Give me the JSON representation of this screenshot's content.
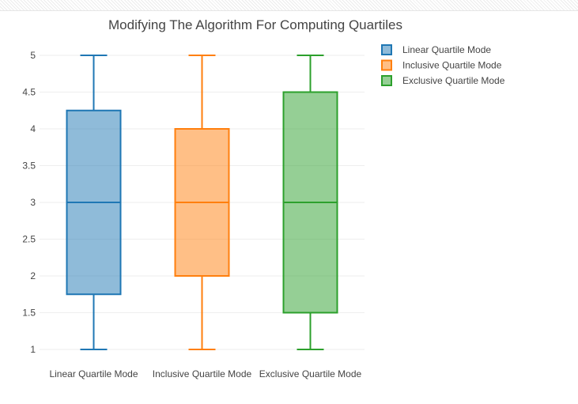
{
  "chart_data": {
    "type": "box",
    "title": "Modifying The Algorithm For Computing Quartiles",
    "categories": [
      "Linear Quartile Mode",
      "Inclusive Quartile Mode",
      "Exclusive Quartile Mode"
    ],
    "series": [
      {
        "name": "Linear Quartile Mode",
        "min": 1,
        "q1": 1.75,
        "median": 3,
        "q3": 4.25,
        "max": 5,
        "color": "#1f77b4"
      },
      {
        "name": "Inclusive Quartile Mode",
        "min": 1,
        "q1": 2,
        "median": 3,
        "q3": 4,
        "max": 5,
        "color": "#ff7f0e"
      },
      {
        "name": "Exclusive Quartile Mode",
        "min": 1,
        "q1": 1.5,
        "median": 3,
        "q3": 4.5,
        "max": 5,
        "color": "#2ca02c"
      }
    ],
    "yticks": [
      "1",
      "1.5",
      "2",
      "2.5",
      "3",
      "3.5",
      "4",
      "4.5",
      "5"
    ],
    "ylim": [
      1,
      5
    ],
    "grid": true,
    "legend_position": "top-right"
  }
}
